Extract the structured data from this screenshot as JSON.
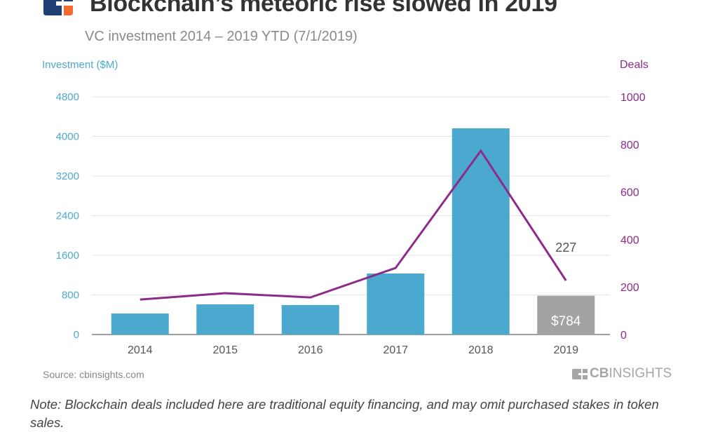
{
  "header": {
    "title": "Blockchain’s meteoric rise slowed in 2019",
    "subtitle": "VC investment 2014 – 2019 YTD (7/1/2019)",
    "logo_icon": "cb-insights-logo-icon"
  },
  "colors": {
    "bar": "#4ba9cf",
    "bar_highlight": "#a3a3a3",
    "line": "#8e2a8a",
    "left_axis": "#4aaad0",
    "right_axis": "#8e2a8a",
    "logo_blue": "#1d3f72",
    "logo_orange": "#f26a2e"
  },
  "chart_data": {
    "type": "bar",
    "title": "Blockchain’s meteoric rise slowed in 2019",
    "subtitle": "VC investment 2014 – 2019 YTD (7/1/2019)",
    "categories": [
      "2014",
      "2015",
      "2016",
      "2017",
      "2018",
      "2019"
    ],
    "series": [
      {
        "name": "Investment ($M)",
        "type": "bar",
        "axis": "left",
        "values": [
          425,
          609,
          595,
          1232,
          4163,
          784
        ],
        "highlight_index": 5,
        "data_labels": {
          "5": "$784"
        }
      },
      {
        "name": "Deals",
        "type": "line",
        "axis": "right",
        "values": [
          147,
          174,
          156,
          280,
          773,
          227
        ],
        "data_labels": {
          "5": "227"
        }
      }
    ],
    "ylabel_left": "Investment ($M)",
    "ylabel_right": "Deals",
    "ylim_left": [
      0,
      4800
    ],
    "ylim_right": [
      0,
      1000
    ],
    "yticks_left": [
      "0",
      "800",
      "1600",
      "2400",
      "3200",
      "4000",
      "4800"
    ],
    "yticks_right": [
      "0",
      "200",
      "400",
      "600",
      "800",
      "1000"
    ],
    "grid": true,
    "legend": "none"
  },
  "footer": {
    "source": "Source: cbinsights.com",
    "brand_bold": "CB",
    "brand_rest": "INSIGHTS",
    "note": "Note: Blockchain deals included here are traditional equity financing, and may omit purchased stakes in token sales."
  }
}
